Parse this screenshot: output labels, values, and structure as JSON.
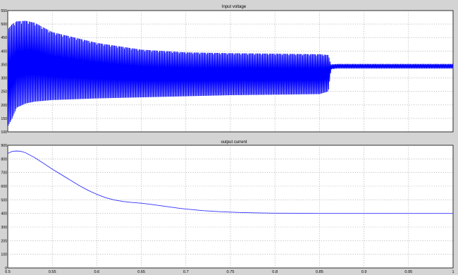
{
  "chart_data": [
    {
      "type": "line",
      "title": "Input voltage",
      "xlabel": "",
      "ylabel": "",
      "xlim": [
        0.5,
        1.0
      ],
      "ylim": [
        100,
        550
      ],
      "x_ticks": [
        0.5,
        0.55,
        0.6,
        0.65,
        0.7,
        0.75,
        0.8,
        0.85,
        0.9,
        0.95,
        1
      ],
      "y_ticks": [
        100,
        150,
        200,
        250,
        300,
        350,
        400,
        450,
        500,
        550
      ],
      "y_tick_labels": [
        "100",
        "150",
        "200",
        "250",
        "300",
        "350",
        "400",
        "450",
        "500",
        "550"
      ],
      "grid": true,
      "line_color": "#0000ff",
      "series": [
        {
          "style": "oscillation envelope (dense ripple)",
          "x": [
            0.5,
            0.505,
            0.51,
            0.52,
            0.53,
            0.55,
            0.6,
            0.65,
            0.7,
            0.75,
            0.8,
            0.85,
            0.86,
            0.863,
            0.87,
            0.9,
            0.95,
            1.0
          ],
          "upper": [
            480,
            500,
            510,
            512,
            505,
            470,
            430,
            405,
            395,
            392,
            390,
            388,
            385,
            350,
            352,
            352,
            352,
            352
          ],
          "lower": [
            120,
            150,
            190,
            205,
            212,
            218,
            224,
            228,
            232,
            236,
            238,
            240,
            250,
            332,
            335,
            335,
            335,
            335
          ]
        }
      ]
    },
    {
      "type": "line",
      "title": "output current",
      "xlabel": "",
      "ylabel": "",
      "xlim": [
        0.5,
        1.0
      ],
      "ylim": [
        0,
        900
      ],
      "x_ticks": [
        0.5,
        0.55,
        0.6,
        0.65,
        0.7,
        0.75,
        0.8,
        0.85,
        0.9,
        0.95,
        1
      ],
      "x_tick_labels": [
        "0.5",
        "0.55",
        "0.6",
        "0.65",
        "0.7",
        "0.75",
        "0.8",
        "0.85",
        "0.9",
        "0.95",
        "1"
      ],
      "y_ticks": [
        0,
        100,
        200,
        300,
        400,
        500,
        600,
        700,
        800,
        900
      ],
      "y_tick_labels": [
        "0",
        "100",
        "200",
        "300",
        "400",
        "500",
        "600",
        "700",
        "800",
        "900"
      ],
      "grid": true,
      "line_color": "#3030ff",
      "series": [
        {
          "x": [
            0.5,
            0.505,
            0.51,
            0.515,
            0.52,
            0.53,
            0.54,
            0.55,
            0.56,
            0.57,
            0.58,
            0.59,
            0.6,
            0.61,
            0.62,
            0.63,
            0.64,
            0.65,
            0.66,
            0.67,
            0.68,
            0.69,
            0.7,
            0.72,
            0.74,
            0.76,
            0.78,
            0.8,
            0.83,
            0.85,
            0.9,
            0.95,
            1.0
          ],
          "y": [
            840,
            855,
            858,
            855,
            845,
            810,
            768,
            725,
            685,
            645,
            605,
            570,
            540,
            515,
            498,
            487,
            480,
            475,
            467,
            458,
            449,
            440,
            432,
            420,
            412,
            407,
            404,
            402,
            401,
            400,
            400,
            400,
            400
          ]
        }
      ]
    }
  ]
}
